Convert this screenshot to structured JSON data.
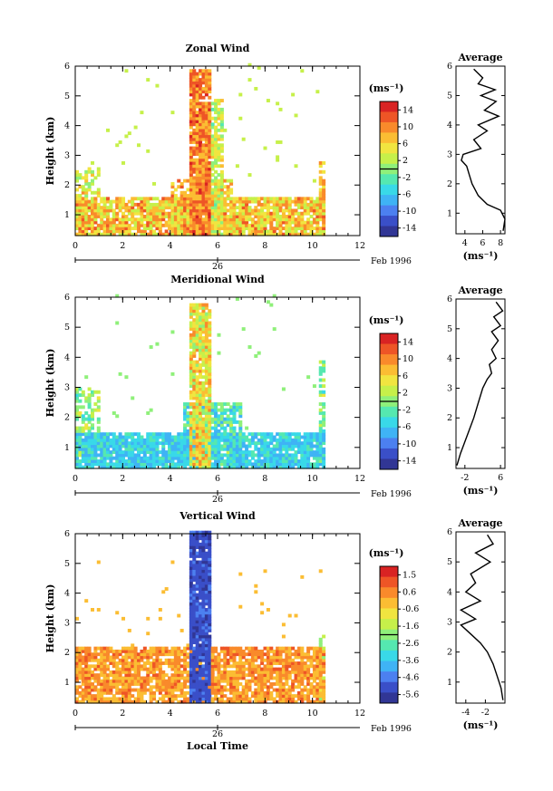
{
  "chart_data": [
    {
      "type": "heatmap",
      "title": "Zonal Wind",
      "xlabel": "",
      "ylabel": "Height (km)",
      "xlim": [
        0,
        12
      ],
      "ylim": [
        0.3,
        6
      ],
      "xticks": [
        "0",
        "2",
        "4",
        "6",
        "8",
        "10",
        "12"
      ],
      "yticks": [
        "1",
        "2",
        "3",
        "4",
        "5",
        "6"
      ],
      "date_tick": "26",
      "date_label": "Feb 1996",
      "colorbar": {
        "unit": "(ms⁻¹)",
        "min": -16,
        "max": 16,
        "ticks": [
          "14",
          "10",
          "6",
          "2",
          "-2",
          "-6",
          "-10",
          "-14"
        ]
      },
      "profile": {
        "title": "Average",
        "xlabel": "(ms⁻¹)",
        "xlim": [
          3,
          8.5
        ],
        "xticks": [
          "4",
          "6",
          "8"
        ],
        "ylim": [
          0.3,
          6
        ],
        "yticks": [
          "1",
          "2",
          "3",
          "4",
          "5",
          "6"
        ],
        "points": [
          [
            8.3,
            0.4
          ],
          [
            8.5,
            0.8
          ],
          [
            8,
            1.1
          ],
          [
            6.5,
            1.3
          ],
          [
            5.5,
            1.6
          ],
          [
            4.8,
            2.0
          ],
          [
            4.5,
            2.3
          ],
          [
            4.2,
            2.6
          ],
          [
            3.6,
            2.8
          ],
          [
            3.8,
            3.0
          ],
          [
            5.8,
            3.2
          ],
          [
            5.0,
            3.5
          ],
          [
            6.5,
            3.8
          ],
          [
            5.5,
            4.0
          ],
          [
            7.8,
            4.3
          ],
          [
            6.2,
            4.5
          ],
          [
            7.5,
            4.8
          ],
          [
            5.8,
            5.0
          ],
          [
            7.4,
            5.2
          ],
          [
            5.5,
            5.4
          ],
          [
            6.0,
            5.6
          ],
          [
            5.0,
            5.9
          ]
        ]
      }
    },
    {
      "type": "heatmap",
      "title": "Meridional Wind",
      "xlabel": "",
      "ylabel": "Height (km)",
      "xlim": [
        0,
        12
      ],
      "ylim": [
        0.3,
        6
      ],
      "xticks": [
        "0",
        "2",
        "4",
        "6",
        "8",
        "10",
        "12"
      ],
      "yticks": [
        "1",
        "2",
        "3",
        "4",
        "5",
        "6"
      ],
      "date_tick": "26",
      "date_label": "Feb 1996",
      "colorbar": {
        "unit": "(ms⁻¹)",
        "min": -16,
        "max": 16,
        "ticks": [
          "14",
          "10",
          "6",
          "2",
          "-2",
          "-6",
          "-10",
          "-14"
        ]
      },
      "profile": {
        "title": "Average",
        "xlabel": "(ms⁻¹)",
        "xlim": [
          -4,
          7
        ],
        "xticks": [
          "-2",
          "6"
        ],
        "ylim": [
          0.3,
          6
        ],
        "yticks": [
          "1",
          "2",
          "3",
          "4",
          "5",
          "6"
        ],
        "points": [
          [
            -3.8,
            0.4
          ],
          [
            -3,
            0.8
          ],
          [
            -2,
            1.2
          ],
          [
            -1,
            1.6
          ],
          [
            0,
            2.0
          ],
          [
            1,
            2.5
          ],
          [
            2,
            3.0
          ],
          [
            3,
            3.3
          ],
          [
            4,
            3.5
          ],
          [
            3.5,
            3.8
          ],
          [
            5,
            4.0
          ],
          [
            4,
            4.3
          ],
          [
            5.5,
            4.6
          ],
          [
            4,
            4.9
          ],
          [
            6,
            5.1
          ],
          [
            4.5,
            5.4
          ],
          [
            6.5,
            5.6
          ],
          [
            5,
            5.9
          ]
        ]
      }
    },
    {
      "type": "heatmap",
      "title": "Vertical Wind",
      "xlabel": "Local Time",
      "ylabel": "Height (km)",
      "xlim": [
        0,
        12
      ],
      "ylim": [
        0.3,
        6
      ],
      "xticks": [
        "0",
        "2",
        "4",
        "6",
        "8",
        "10",
        "12"
      ],
      "yticks": [
        "1",
        "2",
        "3",
        "4",
        "5",
        "6"
      ],
      "date_tick": "26",
      "date_label": "Feb 1996",
      "colorbar": {
        "unit": "(ms⁻¹)",
        "min": -6,
        "max": 2,
        "ticks": [
          "1.5",
          "0.6",
          "-0.6",
          "-1.6",
          "-2.6",
          "-3.6",
          "-4.6",
          "-5.6"
        ]
      },
      "profile": {
        "title": "Average",
        "xlabel": "(ms⁻¹)",
        "xlim": [
          -5,
          0
        ],
        "xticks": [
          "-4",
          "-2"
        ],
        "ylim": [
          0.3,
          6
        ],
        "yticks": [
          "1",
          "2",
          "3",
          "4",
          "5",
          "6"
        ],
        "points": [
          [
            -0.2,
            0.4
          ],
          [
            -0.4,
            0.8
          ],
          [
            -0.8,
            1.2
          ],
          [
            -1.2,
            1.6
          ],
          [
            -1.8,
            2.0
          ],
          [
            -2.5,
            2.3
          ],
          [
            -3.5,
            2.6
          ],
          [
            -4.5,
            2.9
          ],
          [
            -3,
            3.1
          ],
          [
            -4.5,
            3.4
          ],
          [
            -2.5,
            3.7
          ],
          [
            -4,
            4.0
          ],
          [
            -3,
            4.3
          ],
          [
            -3.5,
            4.6
          ],
          [
            -1.5,
            5.0
          ],
          [
            -3,
            5.3
          ],
          [
            -1.2,
            5.6
          ],
          [
            -1.8,
            5.9
          ]
        ]
      }
    }
  ]
}
